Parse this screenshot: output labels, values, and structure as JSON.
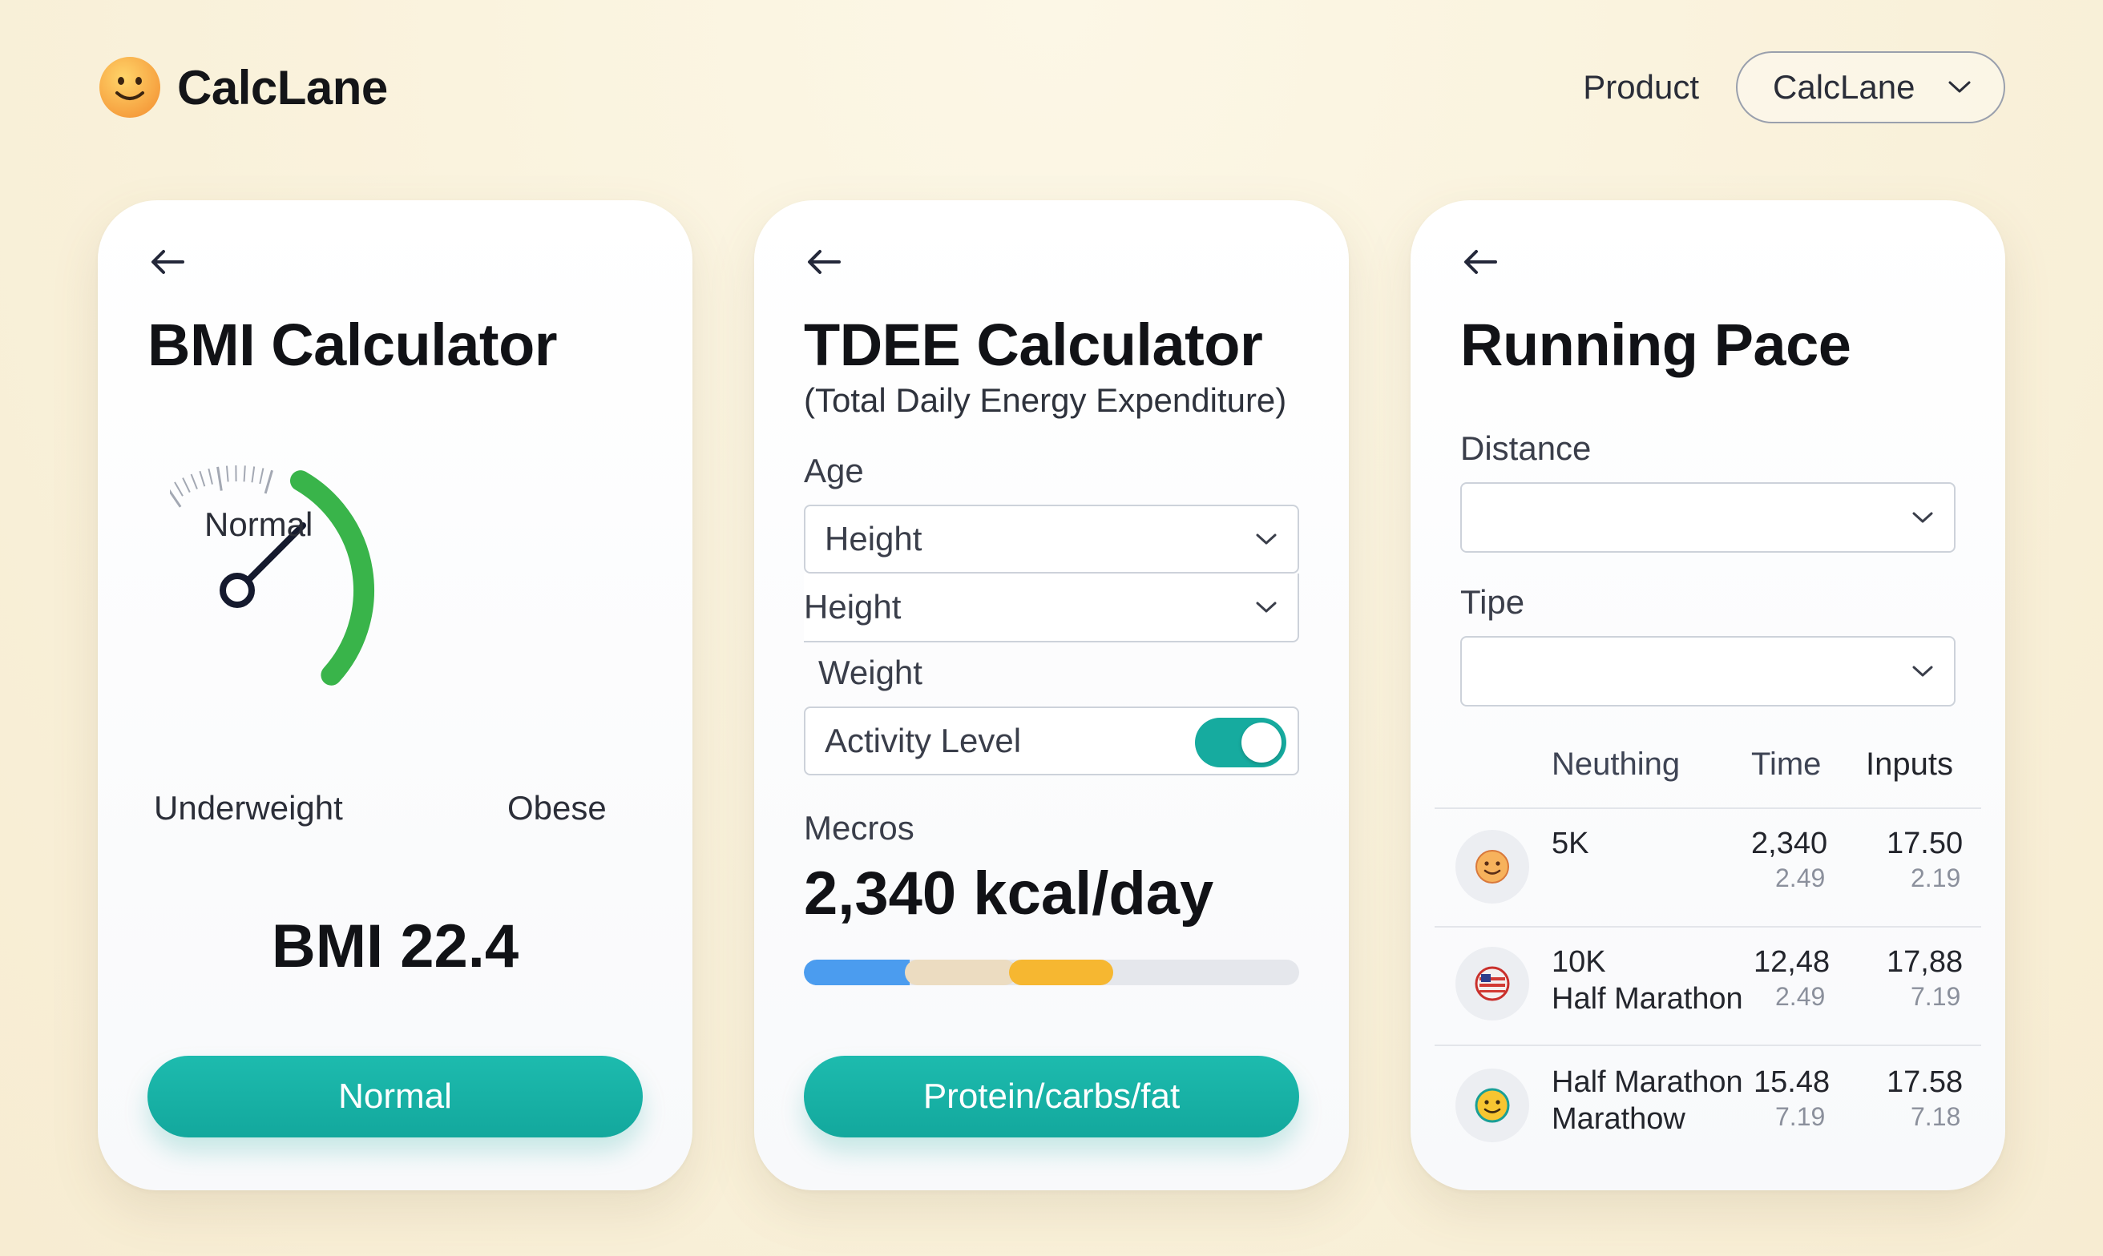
{
  "header": {
    "brand": "CalcLane",
    "nav_link": "Product",
    "selector_label": "CalcLane"
  },
  "bmi": {
    "title": "BMI Calculator",
    "gauge_center_label": "Normal",
    "gauge_left_label": "Underweight",
    "gauge_right_label": "Obese",
    "result": "BMI 22.4",
    "button": "Normal"
  },
  "tdee": {
    "title": "TDEE Calculator",
    "subtitle": "(Total Daily Energy Expenditure)",
    "age_label": "Age",
    "height_select_1": "Height",
    "height_select_2": "Height",
    "weight_label": "Weight",
    "activity_label": "Activity Level",
    "activity_on": true,
    "macros_label": "Mecros",
    "result": "2,340 kcal/day",
    "button": "Protein/carbs/fat",
    "colors": {
      "blue": "#4b9cef",
      "beige": "#ecdcc1",
      "orange": "#f6b731",
      "track": "#e5e7ec",
      "teal": "#14a99e"
    }
  },
  "pace": {
    "title": "Running Pace",
    "distance_label": "Distance",
    "time_label": "Tipe",
    "table": {
      "headers": [
        "Neuthing",
        "Time",
        "Inputs"
      ],
      "rows": [
        {
          "icon": "smiley-face-icon",
          "name": "5K",
          "name2": "",
          "time": "2,340",
          "time_sub": "2.49",
          "input": "17.50",
          "input_sub": "2.19"
        },
        {
          "icon": "flag-icon",
          "name": "10K",
          "name2": "Half Marathon",
          "time": "12,48",
          "time_sub": "2.49",
          "input": "17,88",
          "input_sub": "7.19"
        },
        {
          "icon": "smiley-face-icon",
          "name": "Half Marathon",
          "name2": "Marathow",
          "time": "15.48",
          "time_sub": "7.19",
          "input": "17.58",
          "input_sub": "7.18"
        }
      ]
    }
  }
}
